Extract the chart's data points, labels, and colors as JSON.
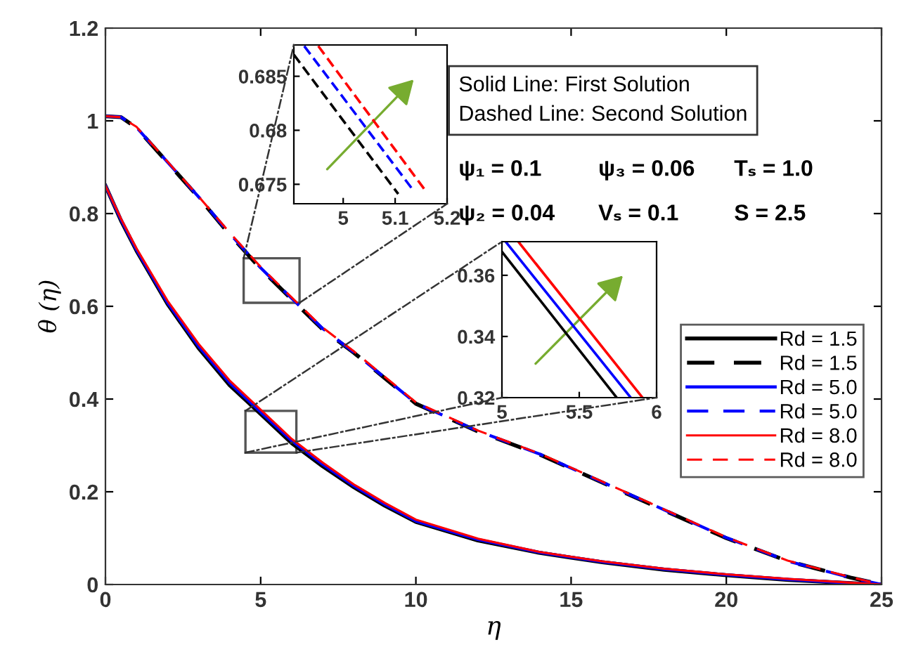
{
  "chart_data": [
    {
      "type": "line",
      "xlabel": "η",
      "ylabel": "θ (η)",
      "xlim": [
        0,
        25
      ],
      "xticks": [
        0,
        5,
        10,
        15,
        20,
        25
      ],
      "ylim": [
        0,
        1.2
      ],
      "yticks": [
        0,
        0.2,
        0.4,
        0.6,
        0.8,
        1,
        1.2
      ],
      "grid": false,
      "legend": "right",
      "x": [
        0,
        0.5,
        1,
        2,
        3,
        4,
        5,
        6,
        7,
        8,
        9,
        10,
        12,
        14,
        15,
        16,
        18,
        20,
        22,
        24,
        25
      ],
      "series": [
        {
          "name": "Rd = 1.5",
          "color": "#000000",
          "line_style": "solid",
          "values": [
            0.86,
            0.785,
            0.72,
            0.605,
            0.51,
            0.43,
            0.368,
            0.305,
            0.255,
            0.21,
            0.17,
            0.135,
            0.095,
            0.068,
            0.058,
            0.048,
            0.032,
            0.02,
            0.01,
            0.003,
            0
          ]
        },
        {
          "name": "Rd = 1.5",
          "color": "#000000",
          "line_style": "dashed",
          "values": [
            1.01,
            1.008,
            0.985,
            0.91,
            0.835,
            0.755,
            0.681,
            0.615,
            0.55,
            0.5,
            0.445,
            0.39,
            0.33,
            0.28,
            0.25,
            0.22,
            0.16,
            0.1,
            0.05,
            0.015,
            0
          ]
        },
        {
          "name": "Rd = 5.0",
          "color": "#0000ff",
          "line_style": "solid",
          "values": [
            0.86,
            0.787,
            0.722,
            0.608,
            0.514,
            0.435,
            0.372,
            0.31,
            0.259,
            0.213,
            0.173,
            0.137,
            0.097,
            0.069,
            0.059,
            0.049,
            0.033,
            0.021,
            0.011,
            0.003,
            0
          ]
        },
        {
          "name": "Rd = 5.0",
          "color": "#0000ff",
          "line_style": "dashed",
          "values": [
            1.01,
            1.008,
            0.986,
            0.911,
            0.836,
            0.757,
            0.683,
            0.617,
            0.552,
            0.501,
            0.446,
            0.391,
            0.331,
            0.281,
            0.251,
            0.221,
            0.161,
            0.101,
            0.05,
            0.015,
            0
          ]
        },
        {
          "name": "Rd = 8.0",
          "color": "#ff0000",
          "line_style": "solid",
          "values": [
            0.86,
            0.789,
            0.725,
            0.612,
            0.519,
            0.44,
            0.377,
            0.314,
            0.263,
            0.216,
            0.176,
            0.14,
            0.099,
            0.07,
            0.06,
            0.05,
            0.034,
            0.022,
            0.012,
            0.004,
            0
          ]
        },
        {
          "name": "Rd = 8.0",
          "color": "#ff0000",
          "line_style": "dashed",
          "values": [
            1.01,
            1.008,
            0.987,
            0.912,
            0.837,
            0.759,
            0.685,
            0.619,
            0.554,
            0.503,
            0.448,
            0.393,
            0.332,
            0.282,
            0.252,
            0.222,
            0.162,
            0.102,
            0.051,
            0.016,
            0
          ]
        }
      ],
      "annotations": [
        "Solid Line: First Solution\nDashed Line: Second Solution",
        "ψ₁ = 0.1",
        "ψ₃ = 0.06",
        "Tₛ = 1.0",
        "ψ₂ = 0.04",
        "Vₛ = 0.1",
        "S = 2.5"
      ]
    },
    {
      "type": "line",
      "xlim": [
        4.905,
        5.2
      ],
      "xticks": [
        5,
        5.1,
        5.2
      ],
      "ylim": [
        0.6732,
        0.6879
      ],
      "yticks": [
        0.675,
        0.68,
        0.685
      ],
      "grid": false,
      "series": [
        {
          "color": "#000000",
          "line_style": "dashed",
          "x": [
            4.905,
            5.106
          ],
          "values": [
            0.687,
            0.6741
          ]
        },
        {
          "color": "#0000ff",
          "line_style": "dashed",
          "x": [
            4.925,
            5.134
          ],
          "values": [
            0.6878,
            0.6745
          ]
        },
        {
          "color": "#ff0000",
          "line_style": "dashed",
          "x": [
            4.952,
            5.157
          ],
          "values": [
            0.6878,
            0.6745
          ]
        }
      ]
    },
    {
      "type": "line",
      "xlim": [
        5,
        6
      ],
      "xticks": [
        5,
        5.5,
        6
      ],
      "ylim": [
        0.32,
        0.371
      ],
      "yticks": [
        0.32,
        0.34,
        0.36
      ],
      "grid": false,
      "series": [
        {
          "color": "#000000",
          "line_style": "solid",
          "x": [
            5,
            5.742
          ],
          "values": [
            0.3677,
            0.32
          ]
        },
        {
          "color": "#0000ff",
          "line_style": "solid",
          "x": [
            5.024,
            5.833
          ],
          "values": [
            0.371,
            0.32
          ]
        },
        {
          "color": "#ff0000",
          "line_style": "solid",
          "x": [
            5.106,
            5.909
          ],
          "values": [
            0.371,
            0.32
          ]
        }
      ]
    }
  ]
}
